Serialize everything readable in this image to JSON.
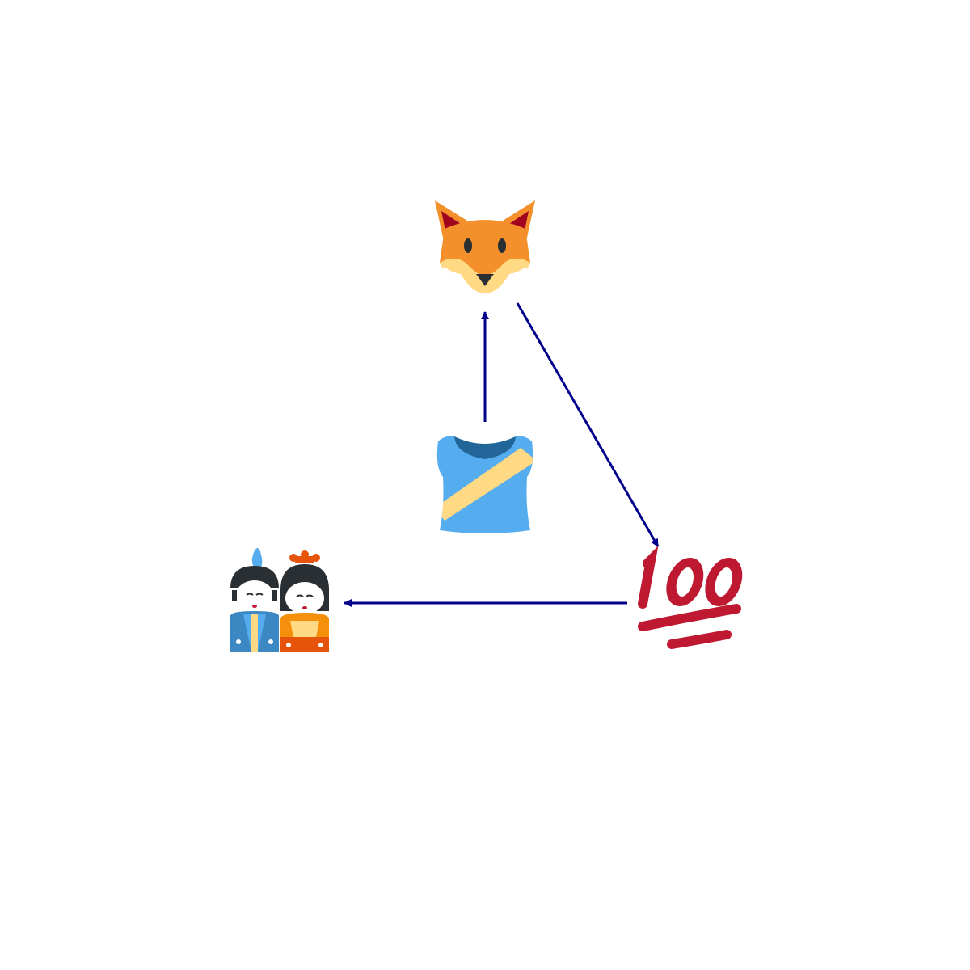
{
  "diagram": {
    "edge_color": "#00008b",
    "nodes": [
      {
        "id": "fox",
        "icon": "fox-face-icon",
        "colors": {
          "fur": "#f4902c",
          "ear": "#a0041e",
          "muzzle": "#ffd983"
        }
      },
      {
        "id": "shirt",
        "icon": "running-shirt-icon",
        "colors": {
          "body": "#55acee",
          "collar": "#226699",
          "sash": "#ffd983"
        }
      },
      {
        "id": "hundred",
        "icon": "hundred-points-icon",
        "colors": {
          "text": "#be1931"
        }
      },
      {
        "id": "dolls",
        "icon": "japanese-dolls-icon",
        "colors": {
          "left": "#3b88c3",
          "right": "#f4900c",
          "face": "#ffffff",
          "hair": "#292f33"
        }
      }
    ],
    "edges": [
      {
        "from": "shirt",
        "to": "fox"
      },
      {
        "from": "fox",
        "to": "hundred"
      },
      {
        "from": "hundred",
        "to": "dolls"
      }
    ]
  }
}
